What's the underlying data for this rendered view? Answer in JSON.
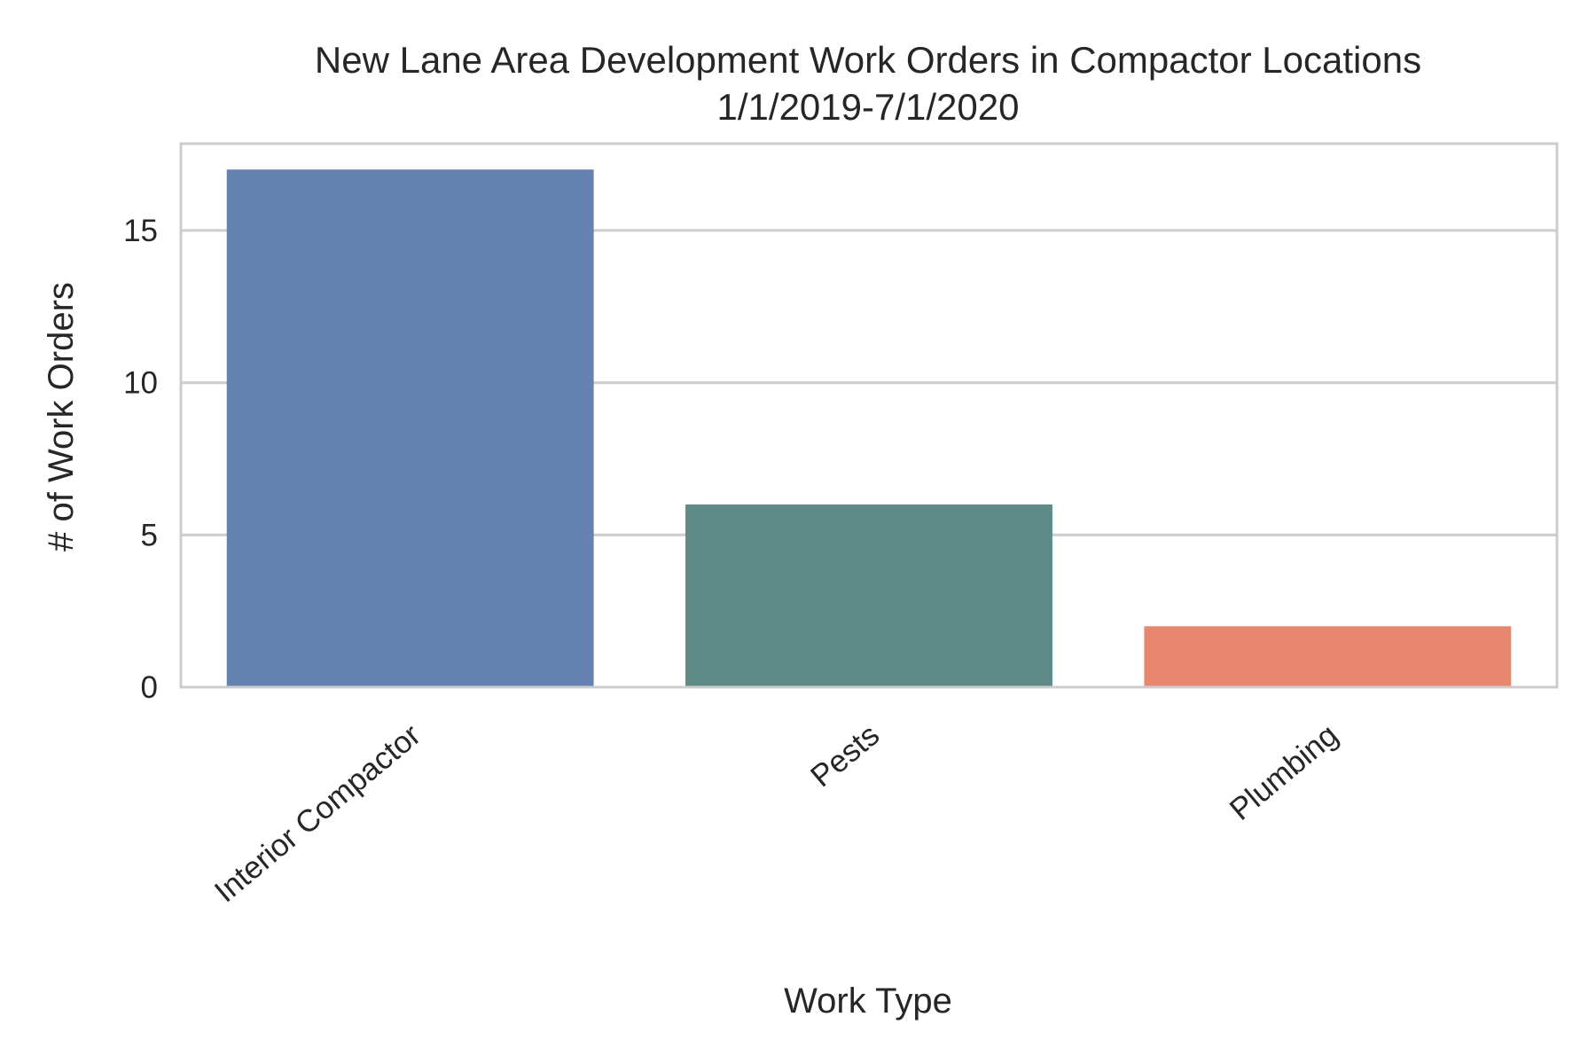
{
  "chart_data": {
    "type": "bar",
    "title": [
      "New Lane Area Development Work Orders in Compactor Locations",
      "1/1/2019-7/1/2020"
    ],
    "xlabel": "Work Type",
    "ylabel": "# of Work Orders",
    "categories": [
      "Interior Compactor",
      "Pests",
      "Plumbing"
    ],
    "values": [
      17,
      6,
      2
    ],
    "colors": [
      "#6682b0",
      "#5e8a87",
      "#e8876f"
    ],
    "ylim": [
      0,
      17.85
    ],
    "yticks": [
      0,
      5,
      10,
      15
    ],
    "grid": "horizontal",
    "legend": "none"
  }
}
